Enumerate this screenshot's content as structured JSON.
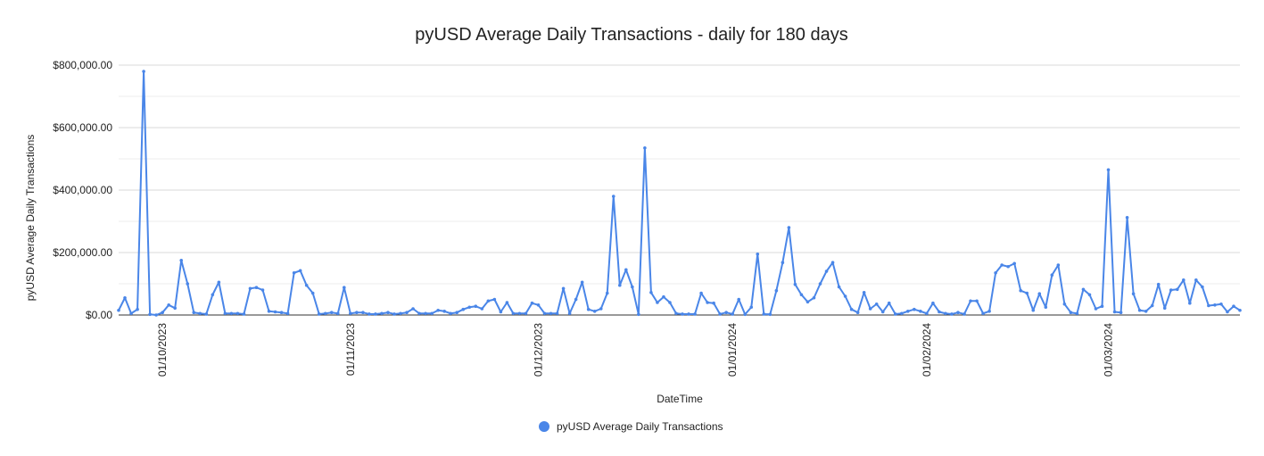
{
  "chart_data": {
    "type": "line",
    "title": "pyUSD Average Daily Transactions - daily for 180 days",
    "xlabel": "DateTime",
    "ylabel": "pyUSD Average Daily Transactions",
    "ylim": [
      0,
      800000
    ],
    "y_ticks": [
      "$0.00",
      "$200,000.00",
      "$400,000.00",
      "$600,000.00",
      "$800,000.00"
    ],
    "x_ticks": [
      {
        "label": "01/10/2023",
        "day": 7
      },
      {
        "label": "01/11/2023",
        "day": 37
      },
      {
        "label": "01/12/2023",
        "day": 67
      },
      {
        "label": "01/01/2024",
        "day": 98
      },
      {
        "label": "01/02/2024",
        "day": 129
      },
      {
        "label": "01/03/2024",
        "day": 158
      }
    ],
    "grid": true,
    "legend": "bottom",
    "color": "#4a86e8",
    "series": [
      {
        "name": "pyUSD Average Daily Transactions",
        "values": [
          15000,
          55000,
          5000,
          18000,
          780000,
          2000,
          0,
          8000,
          32000,
          22000,
          175000,
          100000,
          8000,
          5000,
          3000,
          65000,
          105000,
          5000,
          5000,
          5000,
          3000,
          85000,
          88000,
          80000,
          12000,
          10000,
          8000,
          5000,
          135000,
          142000,
          95000,
          70000,
          3000,
          5000,
          8000,
          5000,
          88000,
          5000,
          8000,
          8000,
          3000,
          3000,
          5000,
          8000,
          3000,
          5000,
          8000,
          20000,
          5000,
          5000,
          5000,
          15000,
          12000,
          5000,
          8000,
          18000,
          25000,
          28000,
          20000,
          45000,
          50000,
          10000,
          40000,
          5000,
          5000,
          5000,
          38000,
          32000,
          5000,
          5000,
          5000,
          85000,
          5000,
          50000,
          105000,
          18000,
          12000,
          20000,
          70000,
          380000,
          95000,
          145000,
          90000,
          2000,
          535000,
          72000,
          40000,
          58000,
          40000,
          5000,
          3000,
          3000,
          3000,
          70000,
          40000,
          38000,
          3000,
          8000,
          3000,
          50000,
          2000,
          25000,
          195000,
          3000,
          2000,
          78000,
          168000,
          280000,
          98000,
          65000,
          42000,
          55000,
          100000,
          140000,
          168000,
          90000,
          60000,
          18000,
          8000,
          72000,
          20000,
          35000,
          10000,
          38000,
          3000,
          5000,
          12000,
          18000,
          12000,
          5000,
          38000,
          10000,
          5000,
          3000,
          8000,
          3000,
          45000,
          45000,
          5000,
          12000,
          135000,
          160000,
          155000,
          165000,
          78000,
          70000,
          15000,
          68000,
          25000,
          128000,
          160000,
          35000,
          8000,
          5000,
          82000,
          65000,
          20000,
          28000,
          465000,
          10000,
          8000,
          312000,
          68000,
          15000,
          12000,
          30000,
          98000,
          22000,
          80000,
          82000,
          112000,
          38000,
          112000,
          90000,
          30000,
          32000,
          35000,
          10000,
          28000,
          15000
        ]
      }
    ]
  }
}
